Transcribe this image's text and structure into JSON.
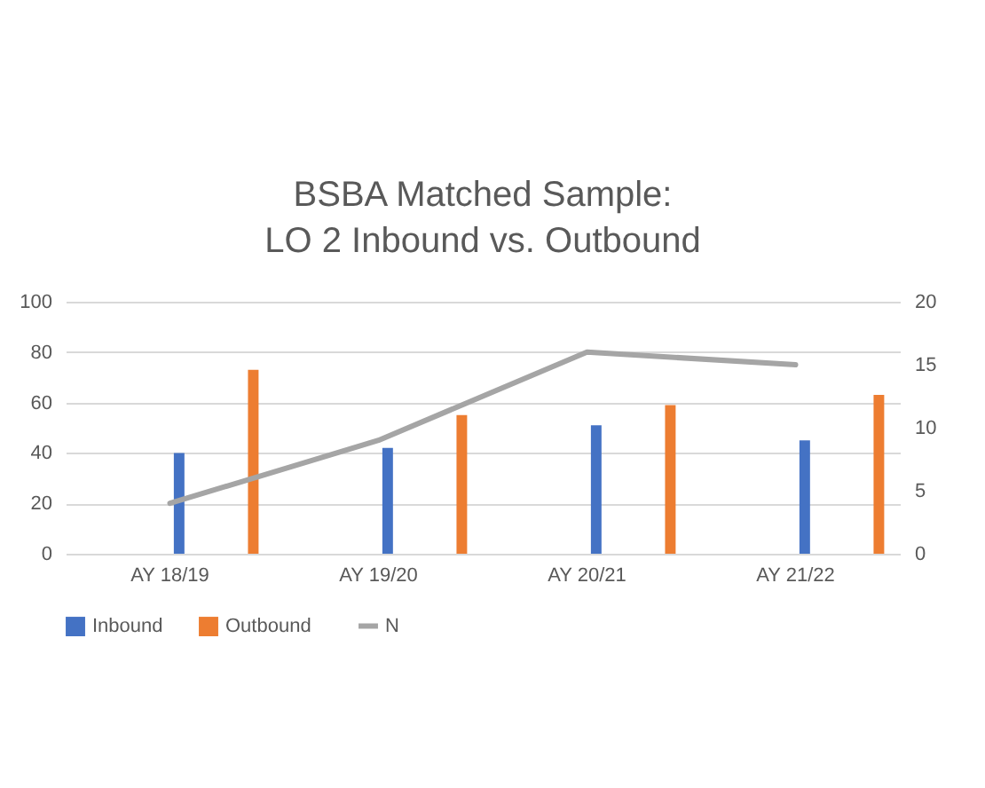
{
  "chart_data": {
    "type": "bar",
    "title": [
      "BSBA Matched Sample:",
      "LO 2 Inbound vs. Outbound"
    ],
    "categories": [
      "AY 18/19",
      "AY 19/20",
      "AY 20/21",
      "AY 21/22"
    ],
    "series": [
      {
        "name": "Inbound",
        "color": "#4472c4",
        "values": [
          40,
          42,
          51,
          45
        ]
      },
      {
        "name": "Outbound",
        "color": "#ed7d31",
        "values": [
          73,
          55,
          59,
          63
        ]
      },
      {
        "name": "N",
        "type": "line",
        "axis": "y2",
        "color": "#a5a5a5",
        "values": [
          4,
          9,
          16,
          15
        ]
      }
    ],
    "ylim": [
      0,
      100
    ],
    "yticks": [
      0,
      20,
      40,
      60,
      80,
      100
    ],
    "y2lim": [
      0,
      20
    ],
    "y2ticks": [
      0,
      5,
      10,
      15,
      20
    ],
    "grid": "y",
    "legend": "bottom"
  }
}
